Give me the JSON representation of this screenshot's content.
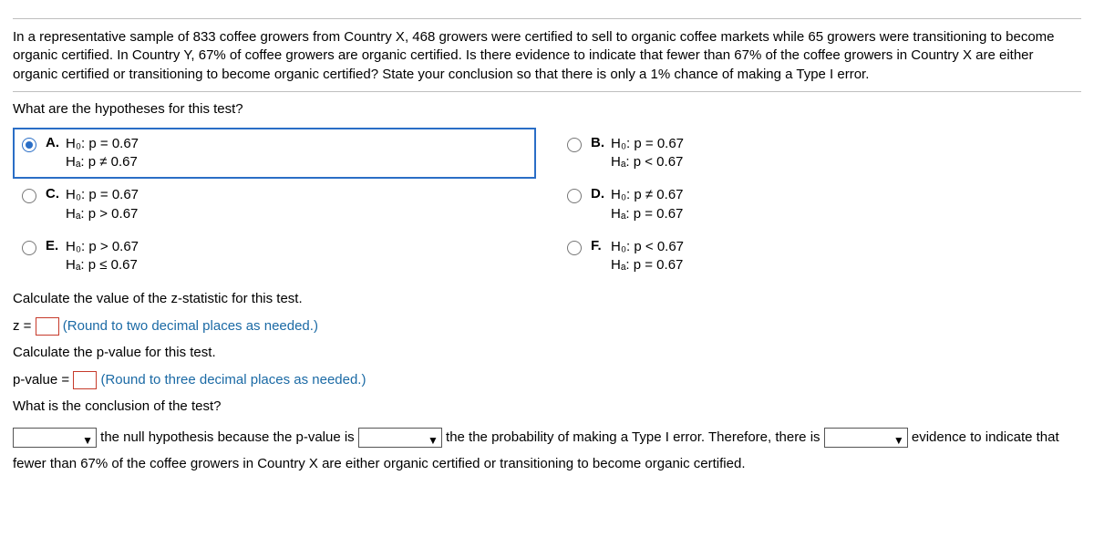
{
  "problem": {
    "text": "In a representative sample of 833 coffee growers from Country X, 468 growers were certified to sell to organic coffee markets while 65 growers were transitioning to become organic certified. In Country Y, 67% of coffee growers are organic certified. Is there evidence to indicate that fewer than 67% of the coffee growers in Country X are either organic certified or transitioning to become organic certified? State your conclusion so that there is only a 1% chance of making a Type I error."
  },
  "prompts": {
    "hypotheses": "What are the hypotheses for this test?",
    "zstat": "Calculate the value of the z-statistic for this test.",
    "pvalue": "Calculate the p-value for this test.",
    "conclusion": "What is the conclusion of the test?"
  },
  "options": {
    "A": {
      "letter": "A.",
      "h0": "H₀: p = 0.67",
      "ha": "Hₐ: p ≠ 0.67",
      "selected": true
    },
    "B": {
      "letter": "B.",
      "h0": "H₀: p = 0.67",
      "ha": "Hₐ: p < 0.67",
      "selected": false
    },
    "C": {
      "letter": "C.",
      "h0": "H₀: p = 0.67",
      "ha": "Hₐ: p > 0.67",
      "selected": false
    },
    "D": {
      "letter": "D.",
      "h0": "H₀: p ≠ 0.67",
      "ha": "Hₐ: p = 0.67",
      "selected": false
    },
    "E": {
      "letter": "E.",
      "h0": "H₀: p > 0.67",
      "ha": "Hₐ: p ≤ 0.67",
      "selected": false
    },
    "F": {
      "letter": "F.",
      "h0": "H₀: p < 0.67",
      "ha": "Hₐ: p = 0.67",
      "selected": false
    }
  },
  "zline": {
    "prefix": "z = ",
    "hint": "(Round to two decimal places as needed.)"
  },
  "pline": {
    "prefix": "p-value = ",
    "hint": "(Round to three decimal places as needed.)"
  },
  "conclusion": {
    "part1": " the null hypothesis because the p-value is ",
    "part2": " the the probability of making a Type I error. Therefore, there is ",
    "part3": " evidence to indicate that fewer than  67% of the coffee growers in Country X are either organic certified or transitioning to become organic certified."
  }
}
